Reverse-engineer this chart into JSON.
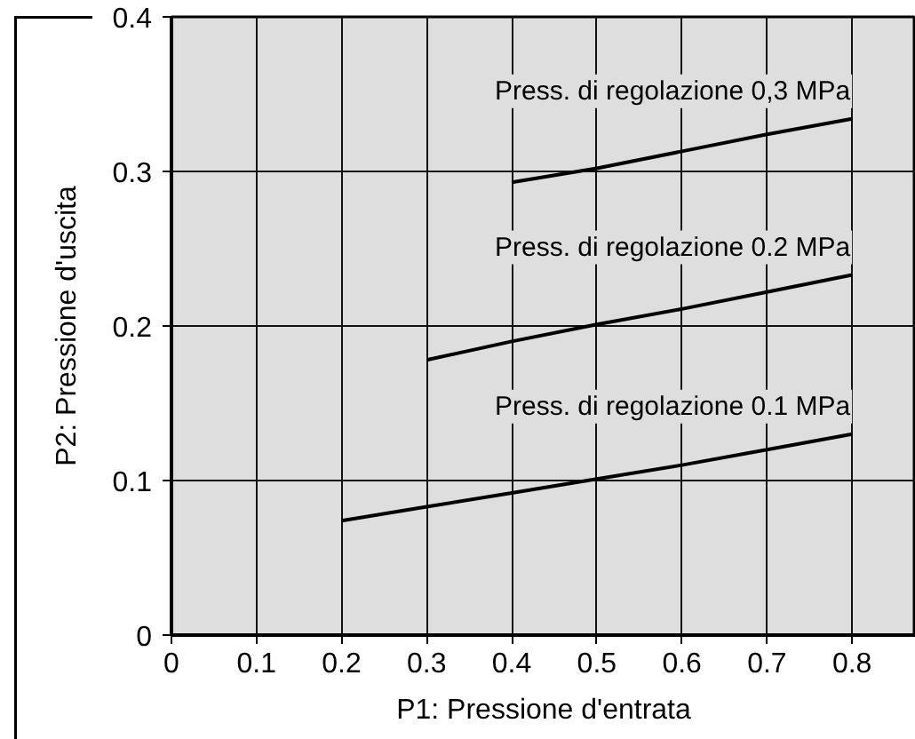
{
  "chart_data": {
    "type": "line",
    "xlabel": "P1: Pressione d'entrata",
    "ylabel": "P2: Pressione d'uscita",
    "xlim": [
      0,
      0.875
    ],
    "ylim": [
      0,
      0.4
    ],
    "xticks": [
      0,
      0.1,
      0.2,
      0.3,
      0.4,
      0.5,
      0.6,
      0.7,
      0.8
    ],
    "yticks": [
      0,
      0.1,
      0.2,
      0.3,
      0.4
    ],
    "grid": true,
    "series": [
      {
        "name": "Press. di regolazione 0,3 MPa",
        "color": "#000000",
        "x": [
          0.4,
          0.5,
          0.6,
          0.7,
          0.8
        ],
        "values": [
          0.293,
          0.302,
          0.313,
          0.324,
          0.334
        ]
      },
      {
        "name": "Press. di regolazione 0.2 MPa",
        "color": "#000000",
        "x": [
          0.3,
          0.4,
          0.5,
          0.6,
          0.7,
          0.8
        ],
        "values": [
          0.178,
          0.19,
          0.201,
          0.211,
          0.222,
          0.233
        ]
      },
      {
        "name": "Press. di regolazione 0.1 MPa",
        "color": "#000000",
        "x": [
          0.2,
          0.3,
          0.4,
          0.5,
          0.6,
          0.7,
          0.8
        ],
        "values": [
          0.074,
          0.083,
          0.092,
          0.101,
          0.11,
          0.12,
          0.13
        ]
      }
    ]
  }
}
